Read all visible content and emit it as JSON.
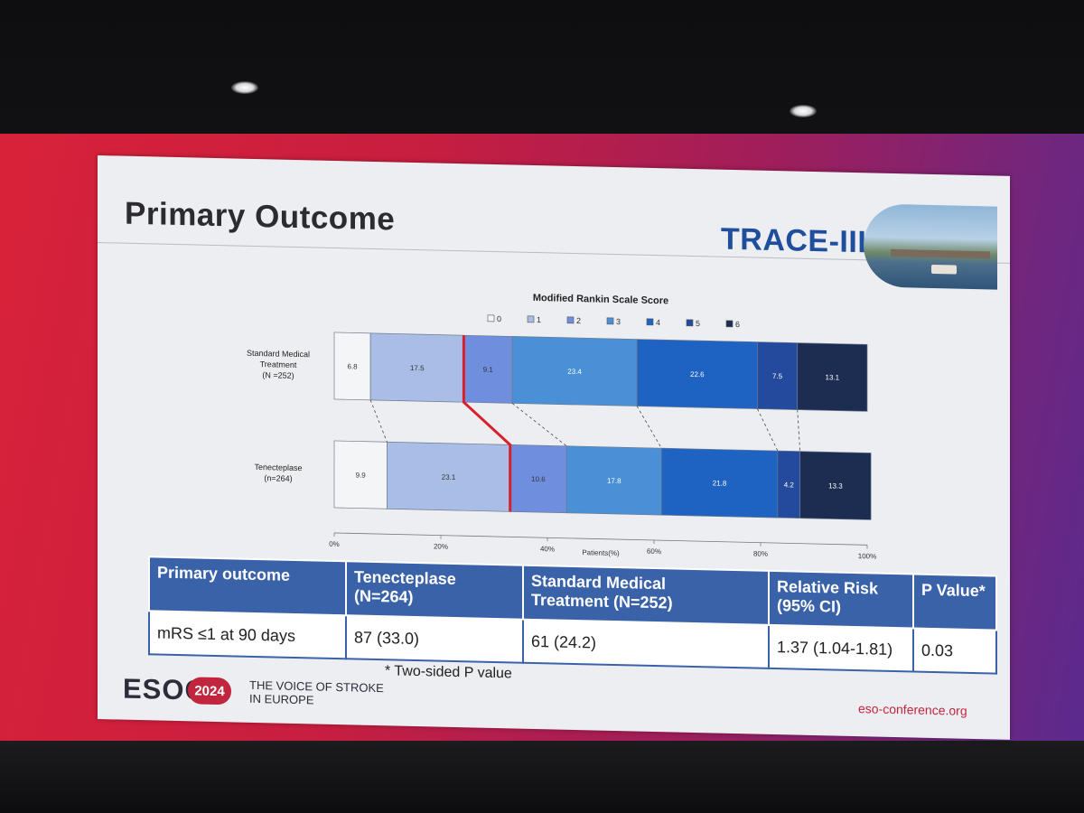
{
  "slide": {
    "title": "Primary Outcome",
    "logo_text": "TRACE-III"
  },
  "chart_data": {
    "type": "bar",
    "orientation": "horizontal",
    "stacked": true,
    "title": "Modified Rankin Scale Score",
    "xlabel": "Patients(%)",
    "xlim": [
      0,
      100
    ],
    "x_ticks": [
      "0%",
      "20%",
      "40%",
      "60%",
      "80%",
      "100%"
    ],
    "categories": [
      {
        "label_lines": [
          "Standard Medical",
          "Treatment",
          "(N =252)"
        ]
      },
      {
        "label_lines": [
          "Tenecteplase",
          "(n=264)"
        ]
      }
    ],
    "series": [
      {
        "name": "0",
        "values": [
          6.8,
          9.9
        ],
        "color": "#f4f5f7"
      },
      {
        "name": "1",
        "values": [
          17.5,
          23.1
        ],
        "color": "#aabde6"
      },
      {
        "name": "2",
        "values": [
          9.1,
          10.6
        ],
        "color": "#6f8ede"
      },
      {
        "name": "3",
        "values": [
          23.4,
          17.8
        ],
        "color": "#4a90d6"
      },
      {
        "name": "4",
        "values": [
          22.6,
          21.8
        ],
        "color": "#1f63c2"
      },
      {
        "name": "5",
        "values": [
          7.5,
          4.2
        ],
        "color": "#234a9c"
      },
      {
        "name": "6",
        "values": [
          13.1,
          13.3
        ],
        "color": "#1d2d52"
      }
    ],
    "legend_position": "top",
    "highlight": {
      "description_hidden": true,
      "after_series_index": 1,
      "color": "#d8202a"
    }
  },
  "table": {
    "headers": [
      [
        "Primary outcome"
      ],
      [
        "Tenecteplase",
        "(N=264)"
      ],
      [
        "Standard Medical",
        "Treatment (N=252)"
      ],
      [
        "Relative Risk",
        "(95% CI)"
      ],
      [
        "P Value*"
      ]
    ],
    "rows": [
      [
        "mRS ≤1 at 90 days",
        "87 (33.0)",
        "61 (24.2)",
        "1.37 (1.04-1.81)",
        "0.03"
      ]
    ]
  },
  "footnote": "* Two-sided P value",
  "footer": {
    "esoc": "ESOC",
    "year": "2024",
    "tagline_line1": "THE VOICE OF STROKE",
    "tagline_line2": "IN EUROPE",
    "url": "eso-conference.org"
  }
}
